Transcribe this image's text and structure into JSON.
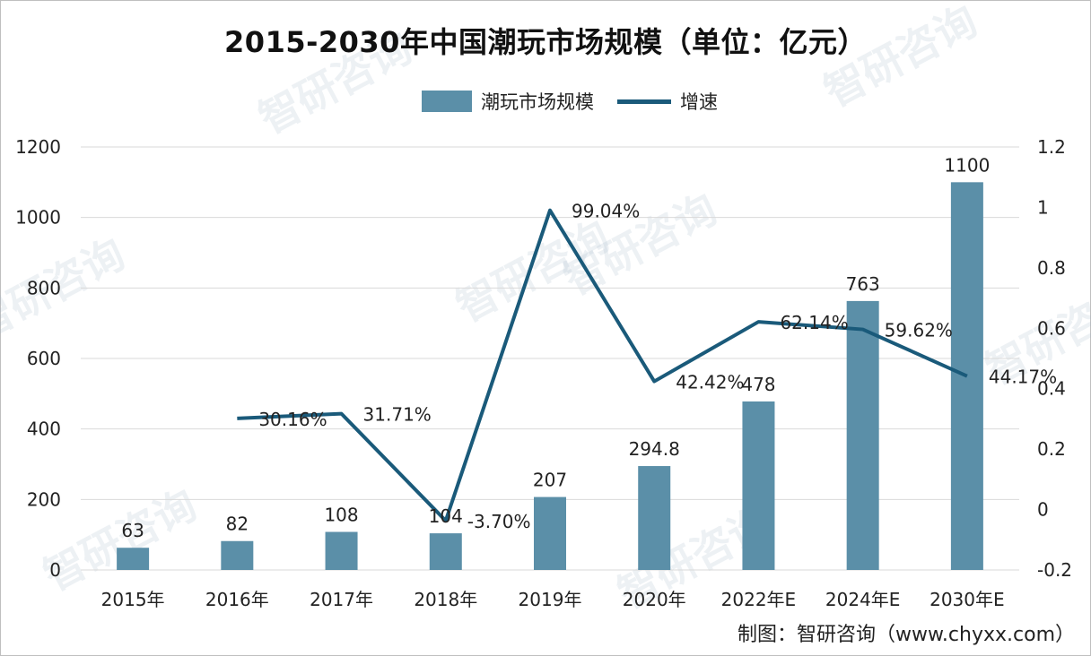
{
  "title": "2015-2030年中国潮玩市场规模（单位：亿元）",
  "source": "制图：智研咨询（www.chyxx.com）",
  "watermark_text": "智研咨询",
  "colors": {
    "bar": "#5b8fa8",
    "line": "#1a5a7a",
    "grid": "#d9d9d9"
  },
  "chart_data": {
    "type": "bar",
    "categories": [
      "2015年",
      "2016年",
      "2017年",
      "2018年",
      "2019年",
      "2020年",
      "2022年E",
      "2024年E",
      "2030年E"
    ],
    "series": [
      {
        "name": "潮玩市场规模",
        "type": "bar",
        "axis": "left",
        "values": [
          63,
          82,
          108,
          104,
          207,
          294.8,
          478,
          763,
          1100
        ],
        "labels": [
          "63",
          "82",
          "108",
          "104",
          "207",
          "294.8",
          "478",
          "763",
          "1100"
        ]
      },
      {
        "name": "增速",
        "type": "line",
        "axis": "right",
        "values": [
          null,
          0.3016,
          0.3171,
          -0.037,
          0.9904,
          0.4242,
          0.6214,
          0.5962,
          0.4417
        ],
        "labels": [
          "",
          "30.16%",
          "31.71%",
          "-3.70%",
          "99.04%",
          "42.42%",
          "62.14%",
          "59.62%",
          "44.17%"
        ]
      }
    ],
    "y_left": {
      "min": 0,
      "max": 1200,
      "ticks": [
        "0",
        "200",
        "400",
        "600",
        "800",
        "1000",
        "1200"
      ]
    },
    "y_right": {
      "min": -0.2,
      "max": 1.2,
      "ticks": [
        "-0.2",
        "0",
        "0.2",
        "0.4",
        "0.6",
        "0.8",
        "1",
        "1.2"
      ]
    },
    "grid": true,
    "legend_position": "top-center"
  }
}
